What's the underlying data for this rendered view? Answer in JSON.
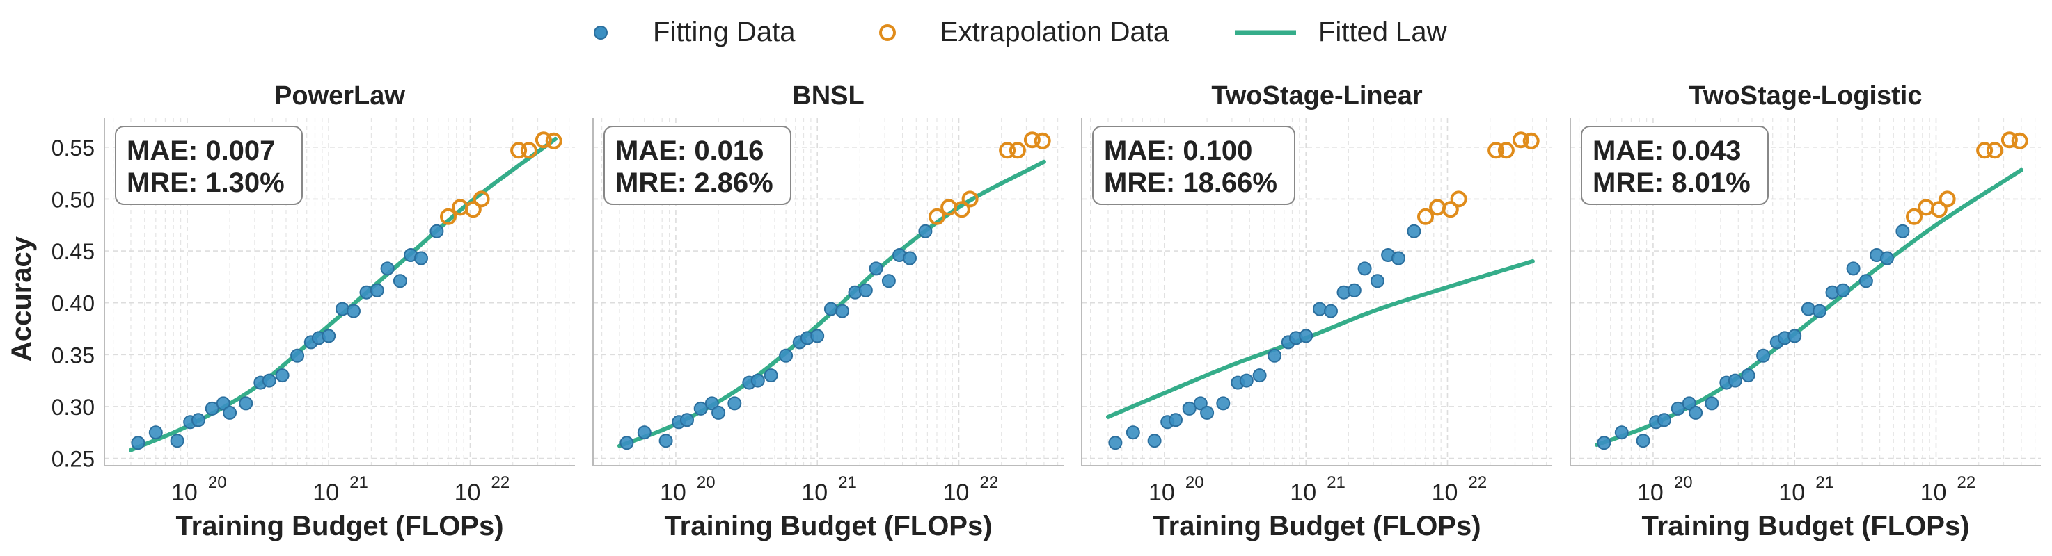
{
  "legend": {
    "fitting_label": "Fitting Data",
    "extrapolation_label": "Extrapolation Data",
    "fitted_label": "Fitted Law"
  },
  "colors": {
    "fitting": "#3a8fc2",
    "fitting_edge": "#2b6f9e",
    "extrapolation": "#e08c1b",
    "fitted": "#35ad8a",
    "grid": "#dddddd",
    "spine": "#bbbbbb",
    "text": "#222222"
  },
  "shared": {
    "xlabel": "Training Budget (FLOPs)",
    "ylabel": "Accuracy",
    "xscale": "log",
    "xlim": [
      2.6e+19,
      5.5e+22
    ],
    "ylim": [
      0.243,
      0.578
    ],
    "yticks": [
      0.25,
      0.3,
      0.35,
      0.4,
      0.45,
      0.5,
      0.55
    ],
    "ytick_labels": [
      "0.25",
      "0.30",
      "0.35",
      "0.40",
      "0.45",
      "0.50",
      "0.55"
    ],
    "xtick_exponents": [
      20,
      21,
      22
    ],
    "xtick_base": "10"
  },
  "chart_data": [
    {
      "type": "scatter+line",
      "title": "PowerLaw",
      "mae": "MAE: 0.007",
      "mre": "MRE: 1.30%",
      "fitting": {
        "x": [
          4.5e+19,
          6e+19,
          8.5e+19,
          1.05e+20,
          1.2e+20,
          1.5e+20,
          1.8e+20,
          2e+20,
          2.6e+20,
          3.3e+20,
          3.8e+20,
          4.7e+20,
          6e+20,
          7.5e+20,
          8.5e+20,
          1e+21,
          1.25e+21,
          1.5e+21,
          1.85e+21,
          2.2e+21,
          2.6e+21,
          3.2e+21,
          3.8e+21,
          4.5e+21,
          5.8e+21
        ],
        "y": [
          0.265,
          0.275,
          0.267,
          0.285,
          0.287,
          0.298,
          0.303,
          0.294,
          0.303,
          0.323,
          0.325,
          0.33,
          0.349,
          0.362,
          0.366,
          0.368,
          0.394,
          0.392,
          0.41,
          0.412,
          0.433,
          0.421,
          0.446,
          0.443,
          0.469
        ]
      },
      "extrapolation": {
        "x": [
          7e+21,
          8.5e+21,
          1.05e+22,
          1.2e+22,
          2.2e+22,
          2.6e+22,
          3.3e+22,
          3.9e+22
        ],
        "y": [
          0.483,
          0.492,
          0.49,
          0.5,
          0.547,
          0.547,
          0.557,
          0.556
        ]
      },
      "fitted_law": {
        "x": [
          4e+19,
          1e+20,
          3e+20,
          1e+21,
          3e+21,
          1e+22,
          4e+22
        ],
        "y": [
          0.258,
          0.281,
          0.318,
          0.378,
          0.435,
          0.497,
          0.558
        ]
      }
    },
    {
      "type": "scatter+line",
      "title": "BNSL",
      "mae": "MAE: 0.016",
      "mre": "MRE: 2.86%",
      "fitting": {
        "x": [
          4.5e+19,
          6e+19,
          8.5e+19,
          1.05e+20,
          1.2e+20,
          1.5e+20,
          1.8e+20,
          2e+20,
          2.6e+20,
          3.3e+20,
          3.8e+20,
          4.7e+20,
          6e+20,
          7.5e+20,
          8.5e+20,
          1e+21,
          1.25e+21,
          1.5e+21,
          1.85e+21,
          2.2e+21,
          2.6e+21,
          3.2e+21,
          3.8e+21,
          4.5e+21,
          5.8e+21
        ],
        "y": [
          0.265,
          0.275,
          0.267,
          0.285,
          0.287,
          0.298,
          0.303,
          0.294,
          0.303,
          0.323,
          0.325,
          0.33,
          0.349,
          0.362,
          0.366,
          0.368,
          0.394,
          0.392,
          0.41,
          0.412,
          0.433,
          0.421,
          0.446,
          0.443,
          0.469
        ]
      },
      "extrapolation": {
        "x": [
          7e+21,
          8.5e+21,
          1.05e+22,
          1.2e+22,
          2.2e+22,
          2.6e+22,
          3.3e+22,
          3.9e+22
        ],
        "y": [
          0.483,
          0.492,
          0.49,
          0.5,
          0.547,
          0.547,
          0.557,
          0.556
        ]
      },
      "fitted_law": {
        "x": [
          4e+19,
          1e+20,
          3e+20,
          1e+21,
          3e+21,
          1e+22,
          4e+22
        ],
        "y": [
          0.262,
          0.283,
          0.32,
          0.378,
          0.438,
          0.492,
          0.536
        ]
      }
    },
    {
      "type": "scatter+line",
      "title": "TwoStage-Linear",
      "mae": "MAE: 0.100",
      "mre": "MRE: 18.66%",
      "fitting": {
        "x": [
          4.5e+19,
          6e+19,
          8.5e+19,
          1.05e+20,
          1.2e+20,
          1.5e+20,
          1.8e+20,
          2e+20,
          2.6e+20,
          3.3e+20,
          3.8e+20,
          4.7e+20,
          6e+20,
          7.5e+20,
          8.5e+20,
          1e+21,
          1.25e+21,
          1.5e+21,
          1.85e+21,
          2.2e+21,
          2.6e+21,
          3.2e+21,
          3.8e+21,
          4.5e+21,
          5.8e+21
        ],
        "y": [
          0.265,
          0.275,
          0.267,
          0.285,
          0.287,
          0.298,
          0.303,
          0.294,
          0.303,
          0.323,
          0.325,
          0.33,
          0.349,
          0.362,
          0.366,
          0.368,
          0.394,
          0.392,
          0.41,
          0.412,
          0.433,
          0.421,
          0.446,
          0.443,
          0.469
        ]
      },
      "extrapolation": {
        "x": [
          7e+21,
          8.5e+21,
          1.05e+22,
          1.2e+22,
          2.2e+22,
          2.6e+22,
          3.3e+22,
          3.9e+22
        ],
        "y": [
          0.483,
          0.492,
          0.49,
          0.5,
          0.547,
          0.547,
          0.557,
          0.556
        ]
      },
      "fitted_law": {
        "x": [
          4e+19,
          1e+20,
          3e+20,
          1e+21,
          3e+21,
          1e+22,
          4e+22
        ],
        "y": [
          0.29,
          0.313,
          0.34,
          0.366,
          0.392,
          0.415,
          0.44
        ]
      }
    },
    {
      "type": "scatter+line",
      "title": "TwoStage-Logistic",
      "mae": "MAE: 0.043",
      "mre": "MRE: 8.01%",
      "fitting": {
        "x": [
          4.5e+19,
          6e+19,
          8.5e+19,
          1.05e+20,
          1.2e+20,
          1.5e+20,
          1.8e+20,
          2e+20,
          2.6e+20,
          3.3e+20,
          3.8e+20,
          4.7e+20,
          6e+20,
          7.5e+20,
          8.5e+20,
          1e+21,
          1.25e+21,
          1.5e+21,
          1.85e+21,
          2.2e+21,
          2.6e+21,
          3.2e+21,
          3.8e+21,
          4.5e+21,
          5.8e+21
        ],
        "y": [
          0.265,
          0.275,
          0.267,
          0.285,
          0.287,
          0.298,
          0.303,
          0.294,
          0.303,
          0.323,
          0.325,
          0.33,
          0.349,
          0.362,
          0.366,
          0.368,
          0.394,
          0.392,
          0.41,
          0.412,
          0.433,
          0.421,
          0.446,
          0.443,
          0.469
        ]
      },
      "extrapolation": {
        "x": [
          7e+21,
          8.5e+21,
          1.05e+22,
          1.2e+22,
          2.2e+22,
          2.6e+22,
          3.3e+22,
          3.9e+22
        ],
        "y": [
          0.483,
          0.492,
          0.49,
          0.5,
          0.547,
          0.547,
          0.557,
          0.556
        ]
      },
      "fitted_law": {
        "x": [
          4e+19,
          1e+20,
          3e+20,
          1e+21,
          3e+21,
          1e+22,
          4e+22
        ],
        "y": [
          0.263,
          0.283,
          0.317,
          0.37,
          0.422,
          0.475,
          0.528
        ]
      }
    }
  ]
}
